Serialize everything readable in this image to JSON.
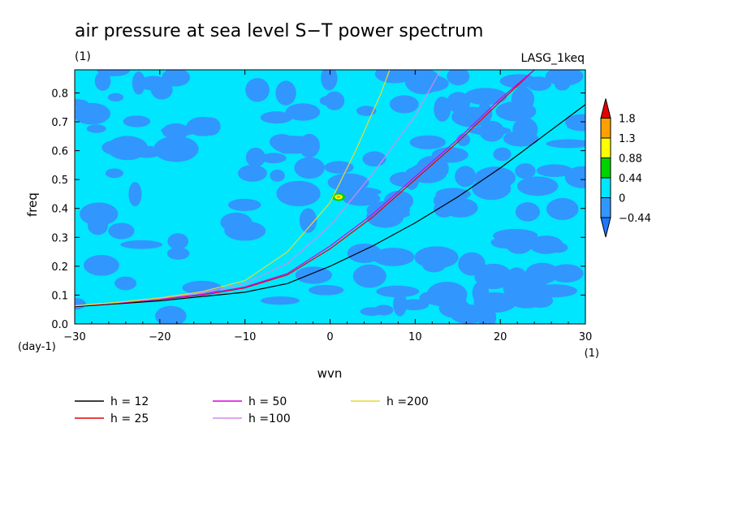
{
  "chart_data": {
    "type": "heatmap",
    "title": "air pressure at sea level S−T power spectrum",
    "title_unit": "(1)",
    "model_label": "LASG_1keq",
    "xlabel": "wvn",
    "ylabel": "freq",
    "x_unit": "(1)",
    "y_unit": "(day-1)",
    "xlim": [
      -30,
      30
    ],
    "ylim": [
      0.0,
      0.88
    ],
    "x_ticks": [
      "−30",
      "−20",
      "−10",
      "0",
      "10",
      "20",
      "30"
    ],
    "x_tick_values": [
      -30,
      -20,
      -10,
      0,
      10,
      20,
      30
    ],
    "y_ticks": [
      "0.0",
      "0.1",
      "0.2",
      "0.3",
      "0.4",
      "0.5",
      "0.6",
      "0.7",
      "0.8"
    ],
    "y_tick_values": [
      0.0,
      0.1,
      0.2,
      0.3,
      0.4,
      0.5,
      0.6,
      0.7,
      0.8
    ],
    "colorbar": {
      "labels": [
        "−0.44",
        "0",
        "0.44",
        "0.88",
        "1.3",
        "1.8"
      ],
      "levels": [
        -0.44,
        0,
        0.44,
        0.88,
        1.3,
        1.8
      ],
      "colors": [
        "#1e78ff",
        "#3296ff",
        "#00e6ff",
        "#00d200",
        "#ffff00",
        "#ffa000",
        "#e60000"
      ]
    },
    "field_note_values": {
      "background_level_colors": [
        "#3296ff",
        "#00e6ff"
      ],
      "peak": {
        "x": 1,
        "y": 0.44
      }
    },
    "series": [
      {
        "name": "h = 12",
        "color": "#000000",
        "x": [
          -30,
          -25,
          -20,
          -15,
          -10,
          -5,
          0,
          5,
          10,
          15,
          20,
          25,
          30
        ],
        "y": [
          0.06,
          0.07,
          0.08,
          0.095,
          0.11,
          0.14,
          0.2,
          0.27,
          0.35,
          0.44,
          0.54,
          0.65,
          0.76
        ]
      },
      {
        "name": "h = 25",
        "color": "#e60000",
        "x": [
          -30,
          -25,
          -20,
          -15,
          -10,
          -5,
          0,
          5,
          10,
          15,
          20,
          24
        ],
        "y": [
          0.062,
          0.072,
          0.085,
          0.1,
          0.125,
          0.17,
          0.26,
          0.37,
          0.5,
          0.63,
          0.77,
          0.88
        ]
      },
      {
        "name": "h = 50",
        "color": "#dc00dc",
        "x": [
          -30,
          -25,
          -20,
          -15,
          -10,
          -5,
          0,
          5,
          10,
          15,
          20,
          24
        ],
        "y": [
          0.063,
          0.073,
          0.086,
          0.102,
          0.128,
          0.175,
          0.27,
          0.38,
          0.51,
          0.64,
          0.78,
          0.88
        ]
      },
      {
        "name": "h =100",
        "color": "#d28ce6",
        "x": [
          -30,
          -25,
          -20,
          -15,
          -10,
          -5,
          0,
          5,
          10,
          13
        ],
        "y": [
          0.063,
          0.074,
          0.088,
          0.108,
          0.14,
          0.21,
          0.34,
          0.52,
          0.72,
          0.88
        ]
      },
      {
        "name": "h =200",
        "color": "#e6dc32",
        "x": [
          -30,
          -25,
          -20,
          -15,
          -10,
          -5,
          0,
          3,
          6,
          7
        ],
        "y": [
          0.063,
          0.075,
          0.09,
          0.112,
          0.15,
          0.25,
          0.42,
          0.6,
          0.8,
          0.88
        ]
      }
    ]
  }
}
